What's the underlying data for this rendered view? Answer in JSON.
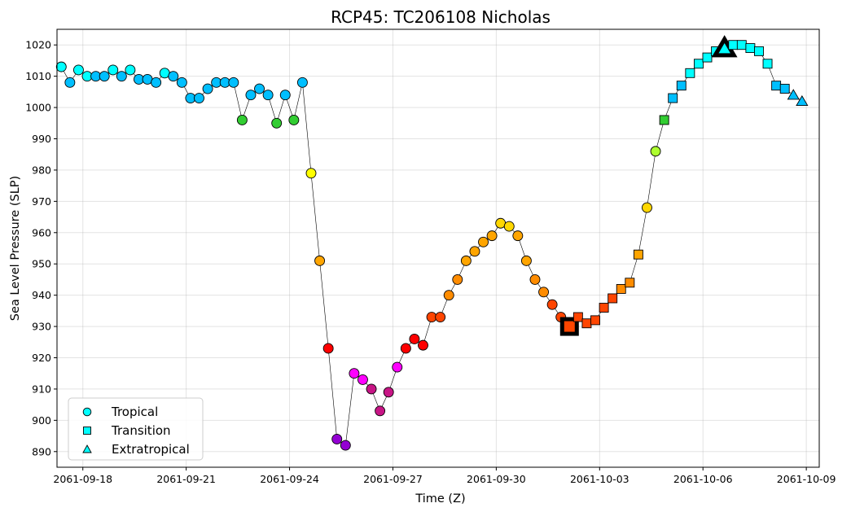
{
  "chart_data": {
    "type": "scatter",
    "title": "RCP45: TC206108 Nicholas",
    "xlabel": "Time (Z)",
    "ylabel": "Sea Level Pressure (SLP)",
    "xlim": [
      "2061-09-17T06:00",
      "2061-10-09T09:00"
    ],
    "ylim": [
      885,
      1025
    ],
    "xticks": [
      "2061-09-18",
      "2061-09-21",
      "2061-09-24",
      "2061-09-27",
      "2061-09-30",
      "2061-10-03",
      "2061-10-06",
      "2061-10-09"
    ],
    "yticks": [
      890,
      900,
      910,
      920,
      930,
      940,
      950,
      960,
      970,
      980,
      990,
      1000,
      1010,
      1020
    ],
    "grid": true,
    "legend_position": "lower-left",
    "legend": [
      {
        "label": "Tropical",
        "marker": "circle"
      },
      {
        "label": "Transition",
        "marker": "square"
      },
      {
        "label": "Extratropical",
        "marker": "triangle"
      }
    ],
    "points": [
      {
        "t": "2061-09-17T09:00",
        "slp": 1013,
        "phase": "Tropical",
        "color": "#00ffff"
      },
      {
        "t": "2061-09-17T15:00",
        "slp": 1008,
        "phase": "Tropical",
        "color": "#00bfff"
      },
      {
        "t": "2061-09-17T21:00",
        "slp": 1012,
        "phase": "Tropical",
        "color": "#00ffff"
      },
      {
        "t": "2061-09-18T03:00",
        "slp": 1010,
        "phase": "Tropical",
        "color": "#00ffff"
      },
      {
        "t": "2061-09-18T09:00",
        "slp": 1010,
        "phase": "Tropical",
        "color": "#00bfff"
      },
      {
        "t": "2061-09-18T15:00",
        "slp": 1010,
        "phase": "Tropical",
        "color": "#00bfff"
      },
      {
        "t": "2061-09-18T21:00",
        "slp": 1012,
        "phase": "Tropical",
        "color": "#00ffff"
      },
      {
        "t": "2061-09-19T03:00",
        "slp": 1010,
        "phase": "Tropical",
        "color": "#00bfff"
      },
      {
        "t": "2061-09-19T09:00",
        "slp": 1012,
        "phase": "Tropical",
        "color": "#00ffff"
      },
      {
        "t": "2061-09-19T15:00",
        "slp": 1009,
        "phase": "Tropical",
        "color": "#00bfff"
      },
      {
        "t": "2061-09-19T21:00",
        "slp": 1009,
        "phase": "Tropical",
        "color": "#00bfff"
      },
      {
        "t": "2061-09-20T03:00",
        "slp": 1008,
        "phase": "Tropical",
        "color": "#00bfff"
      },
      {
        "t": "2061-09-20T09:00",
        "slp": 1011,
        "phase": "Tropical",
        "color": "#00ffff"
      },
      {
        "t": "2061-09-20T15:00",
        "slp": 1010,
        "phase": "Tropical",
        "color": "#00bfff"
      },
      {
        "t": "2061-09-20T21:00",
        "slp": 1008,
        "phase": "Tropical",
        "color": "#00bfff"
      },
      {
        "t": "2061-09-21T03:00",
        "slp": 1003,
        "phase": "Tropical",
        "color": "#00bfff"
      },
      {
        "t": "2061-09-21T09:00",
        "slp": 1003,
        "phase": "Tropical",
        "color": "#00bfff"
      },
      {
        "t": "2061-09-21T15:00",
        "slp": 1006,
        "phase": "Tropical",
        "color": "#00bfff"
      },
      {
        "t": "2061-09-21T21:00",
        "slp": 1008,
        "phase": "Tropical",
        "color": "#00bfff"
      },
      {
        "t": "2061-09-22T03:00",
        "slp": 1008,
        "phase": "Tropical",
        "color": "#00bfff"
      },
      {
        "t": "2061-09-22T09:00",
        "slp": 1008,
        "phase": "Tropical",
        "color": "#00bfff"
      },
      {
        "t": "2061-09-22T15:00",
        "slp": 996,
        "phase": "Tropical",
        "color": "#32cd32"
      },
      {
        "t": "2061-09-22T21:00",
        "slp": 1004,
        "phase": "Tropical",
        "color": "#00bfff"
      },
      {
        "t": "2061-09-23T03:00",
        "slp": 1006,
        "phase": "Tropical",
        "color": "#00bfff"
      },
      {
        "t": "2061-09-23T09:00",
        "slp": 1004,
        "phase": "Tropical",
        "color": "#00bfff"
      },
      {
        "t": "2061-09-23T15:00",
        "slp": 995,
        "phase": "Tropical",
        "color": "#32cd32"
      },
      {
        "t": "2061-09-23T21:00",
        "slp": 1004,
        "phase": "Tropical",
        "color": "#00bfff"
      },
      {
        "t": "2061-09-24T03:00",
        "slp": 996,
        "phase": "Tropical",
        "color": "#32cd32"
      },
      {
        "t": "2061-09-24T09:00",
        "slp": 1008,
        "phase": "Tropical",
        "color": "#00bfff"
      },
      {
        "t": "2061-09-24T15:00",
        "slp": 979,
        "phase": "Tropical",
        "color": "#ffff00"
      },
      {
        "t": "2061-09-24T21:00",
        "slp": 951,
        "phase": "Tropical",
        "color": "#ffa500"
      },
      {
        "t": "2061-09-25T03:00",
        "slp": 923,
        "phase": "Tropical",
        "color": "#ff0000"
      },
      {
        "t": "2061-09-25T09:00",
        "slp": 894,
        "phase": "Tropical",
        "color": "#9400d3"
      },
      {
        "t": "2061-09-25T15:00",
        "slp": 892,
        "phase": "Tropical",
        "color": "#9400d3"
      },
      {
        "t": "2061-09-25T21:00",
        "slp": 915,
        "phase": "Tropical",
        "color": "#ff00ff"
      },
      {
        "t": "2061-09-26T03:00",
        "slp": 913,
        "phase": "Tropical",
        "color": "#ff00ff"
      },
      {
        "t": "2061-09-26T09:00",
        "slp": 910,
        "phase": "Tropical",
        "color": "#c71585"
      },
      {
        "t": "2061-09-26T15:00",
        "slp": 903,
        "phase": "Tropical",
        "color": "#c71585"
      },
      {
        "t": "2061-09-26T21:00",
        "slp": 909,
        "phase": "Tropical",
        "color": "#c71585"
      },
      {
        "t": "2061-09-27T03:00",
        "slp": 917,
        "phase": "Tropical",
        "color": "#ff00ff"
      },
      {
        "t": "2061-09-27T09:00",
        "slp": 923,
        "phase": "Tropical",
        "color": "#ff0000"
      },
      {
        "t": "2061-09-27T15:00",
        "slp": 926,
        "phase": "Tropical",
        "color": "#ff0000"
      },
      {
        "t": "2061-09-27T21:00",
        "slp": 924,
        "phase": "Tropical",
        "color": "#ff0000"
      },
      {
        "t": "2061-09-28T03:00",
        "slp": 933,
        "phase": "Tropical",
        "color": "#ff4500"
      },
      {
        "t": "2061-09-28T09:00",
        "slp": 933,
        "phase": "Tropical",
        "color": "#ff4500"
      },
      {
        "t": "2061-09-28T15:00",
        "slp": 940,
        "phase": "Tropical",
        "color": "#ff8c00"
      },
      {
        "t": "2061-09-28T21:00",
        "slp": 945,
        "phase": "Tropical",
        "color": "#ff8c00"
      },
      {
        "t": "2061-09-29T03:00",
        "slp": 951,
        "phase": "Tropical",
        "color": "#ffa500"
      },
      {
        "t": "2061-09-29T09:00",
        "slp": 954,
        "phase": "Tropical",
        "color": "#ffa500"
      },
      {
        "t": "2061-09-29T15:00",
        "slp": 957,
        "phase": "Tropical",
        "color": "#ffa500"
      },
      {
        "t": "2061-09-29T21:00",
        "slp": 959,
        "phase": "Tropical",
        "color": "#ffa500"
      },
      {
        "t": "2061-09-30T03:00",
        "slp": 963,
        "phase": "Tropical",
        "color": "#ffd700"
      },
      {
        "t": "2061-09-30T09:00",
        "slp": 962,
        "phase": "Tropical",
        "color": "#ffd700"
      },
      {
        "t": "2061-09-30T15:00",
        "slp": 959,
        "phase": "Tropical",
        "color": "#ffa500"
      },
      {
        "t": "2061-09-30T21:00",
        "slp": 951,
        "phase": "Tropical",
        "color": "#ffa500"
      },
      {
        "t": "2061-10-01T03:00",
        "slp": 945,
        "phase": "Tropical",
        "color": "#ff8c00"
      },
      {
        "t": "2061-10-01T09:00",
        "slp": 941,
        "phase": "Tropical",
        "color": "#ff8c00"
      },
      {
        "t": "2061-10-01T15:00",
        "slp": 937,
        "phase": "Tropical",
        "color": "#ff4500"
      },
      {
        "t": "2061-10-01T21:00",
        "slp": 933,
        "phase": "Tropical",
        "color": "#ff4500"
      },
      {
        "t": "2061-10-02T03:00",
        "slp": 930,
        "phase": "Transition",
        "color": "#ff4500",
        "highlight": true
      },
      {
        "t": "2061-10-02T09:00",
        "slp": 933,
        "phase": "Transition",
        "color": "#ff4500"
      },
      {
        "t": "2061-10-02T15:00",
        "slp": 931,
        "phase": "Transition",
        "color": "#ff4500"
      },
      {
        "t": "2061-10-02T21:00",
        "slp": 932,
        "phase": "Transition",
        "color": "#ff4500"
      },
      {
        "t": "2061-10-03T03:00",
        "slp": 936,
        "phase": "Transition",
        "color": "#ff4500"
      },
      {
        "t": "2061-10-03T09:00",
        "slp": 939,
        "phase": "Transition",
        "color": "#ff4500"
      },
      {
        "t": "2061-10-03T15:00",
        "slp": 942,
        "phase": "Transition",
        "color": "#ff8c00"
      },
      {
        "t": "2061-10-03T21:00",
        "slp": 944,
        "phase": "Transition",
        "color": "#ff8c00"
      },
      {
        "t": "2061-10-04T03:00",
        "slp": 953,
        "phase": "Transition",
        "color": "#ffa500"
      },
      {
        "t": "2061-10-04T09:00",
        "slp": 968,
        "phase": "Tropical",
        "color": "#ffd700"
      },
      {
        "t": "2061-10-04T15:00",
        "slp": 986,
        "phase": "Tropical",
        "color": "#adff2f"
      },
      {
        "t": "2061-10-04T21:00",
        "slp": 996,
        "phase": "Transition",
        "color": "#32cd32"
      },
      {
        "t": "2061-10-05T03:00",
        "slp": 1003,
        "phase": "Transition",
        "color": "#00bfff"
      },
      {
        "t": "2061-10-05T09:00",
        "slp": 1007,
        "phase": "Transition",
        "color": "#00bfff"
      },
      {
        "t": "2061-10-05T15:00",
        "slp": 1011,
        "phase": "Transition",
        "color": "#00ffff"
      },
      {
        "t": "2061-10-05T21:00",
        "slp": 1014,
        "phase": "Transition",
        "color": "#00ffff"
      },
      {
        "t": "2061-10-06T03:00",
        "slp": 1016,
        "phase": "Transition",
        "color": "#00ffff"
      },
      {
        "t": "2061-10-06T09:00",
        "slp": 1018,
        "phase": "Transition",
        "color": "#00ffff"
      },
      {
        "t": "2061-10-06T15:00",
        "slp": 1019,
        "phase": "Extratropical",
        "color": "#00ffff",
        "highlight": true
      },
      {
        "t": "2061-10-06T21:00",
        "slp": 1020,
        "phase": "Transition",
        "color": "#00ffff"
      },
      {
        "t": "2061-10-07T03:00",
        "slp": 1020,
        "phase": "Transition",
        "color": "#00ffff"
      },
      {
        "t": "2061-10-07T09:00",
        "slp": 1019,
        "phase": "Transition",
        "color": "#00ffff"
      },
      {
        "t": "2061-10-07T15:00",
        "slp": 1018,
        "phase": "Transition",
        "color": "#00ffff"
      },
      {
        "t": "2061-10-07T21:00",
        "slp": 1014,
        "phase": "Transition",
        "color": "#00ffff"
      },
      {
        "t": "2061-10-08T03:00",
        "slp": 1007,
        "phase": "Transition",
        "color": "#00bfff"
      },
      {
        "t": "2061-10-08T09:00",
        "slp": 1006,
        "phase": "Transition",
        "color": "#00bfff"
      },
      {
        "t": "2061-10-08T15:00",
        "slp": 1004,
        "phase": "Extratropical",
        "color": "#00bfff"
      },
      {
        "t": "2061-10-08T21:00",
        "slp": 1002,
        "phase": "Extratropical",
        "color": "#00bfff"
      }
    ]
  }
}
